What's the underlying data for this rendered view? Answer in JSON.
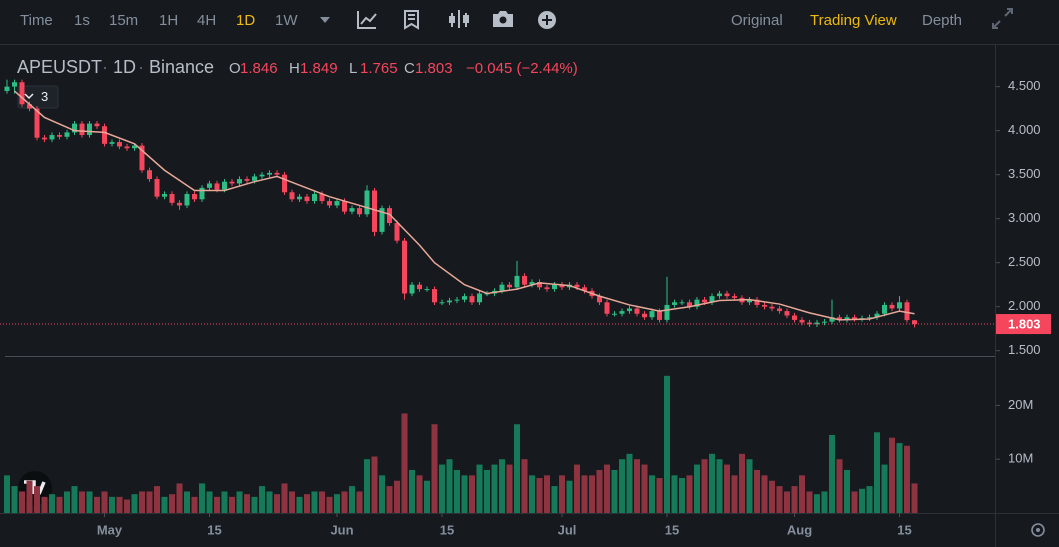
{
  "toolbar": {
    "intervals": [
      "Time",
      "1s",
      "15m",
      "1H",
      "4H",
      "1D",
      "1W"
    ],
    "views": [
      "Original",
      "Trading View",
      "Depth"
    ]
  },
  "chart_data": {
    "type": "candlestick",
    "symbol": "APEUSDT",
    "interval": "1D",
    "exchange": "Binance",
    "ohlc_labels": [
      "O",
      "H",
      "L",
      "C"
    ],
    "change": "−0.045 (−2.44%)",
    "indicator_count": "3",
    "open": [
      4.45,
      4.5,
      4.55,
      4.3,
      4.25,
      3.92,
      3.9,
      3.95,
      3.93,
      3.98,
      4.08,
      3.95,
      4.08,
      4.05,
      3.85,
      3.87,
      3.82,
      3.8,
      3.83,
      3.55,
      3.45,
      3.25,
      3.28,
      3.18,
      3.15,
      3.28,
      3.22,
      3.35,
      3.4,
      3.33,
      3.42,
      3.4,
      3.45,
      3.43,
      3.48,
      3.5,
      3.52,
      3.5,
      3.3,
      3.22,
      3.25,
      3.2,
      3.28,
      3.2,
      3.15,
      3.2,
      3.08,
      3.12,
      3.05,
      3.32,
      2.85,
      3.12,
      2.95,
      2.75,
      2.15,
      2.25,
      2.2,
      2.2,
      2.05,
      2.05,
      2.07,
      2.08,
      2.12,
      2.05,
      2.15,
      2.15,
      2.18,
      2.25,
      2.22,
      2.35,
      2.25,
      2.28,
      2.22,
      2.2,
      2.25,
      2.22,
      2.25,
      2.22,
      2.18,
      2.12,
      2.05,
      1.92,
      1.92,
      1.95,
      1.98,
      1.92,
      1.88,
      1.95,
      1.85,
      2.02,
      2.05,
      2.05,
      2.0,
      2.08,
      2.05,
      2.12,
      2.15,
      2.12,
      2.1,
      2.05,
      2.08,
      2.02,
      2.0,
      1.98,
      1.95,
      1.9,
      1.85,
      1.82,
      1.8,
      1.82,
      1.83,
      1.88,
      1.85,
      1.88,
      1.86,
      1.87,
      1.88,
      1.92,
      2.02,
      1.98,
      2.05,
      1.846
    ],
    "high": [
      4.58,
      4.58,
      4.58,
      4.33,
      4.28,
      3.95,
      3.98,
      3.98,
      4.01,
      4.11,
      4.11,
      4.11,
      4.11,
      4.08,
      3.9,
      3.9,
      3.85,
      3.86,
      3.86,
      3.58,
      3.48,
      3.31,
      3.31,
      3.21,
      3.31,
      3.31,
      3.38,
      3.43,
      3.43,
      3.45,
      3.45,
      3.48,
      3.48,
      3.51,
      3.53,
      3.55,
      3.55,
      3.53,
      3.33,
      3.28,
      3.28,
      3.31,
      3.31,
      3.23,
      3.23,
      3.23,
      3.15,
      3.15,
      3.38,
      3.35,
      3.15,
      3.15,
      2.98,
      2.78,
      2.28,
      2.28,
      2.23,
      2.23,
      2.08,
      2.1,
      2.11,
      2.15,
      2.15,
      2.18,
      2.18,
      2.21,
      2.28,
      2.28,
      2.52,
      2.38,
      2.31,
      2.31,
      2.25,
      2.28,
      2.28,
      2.28,
      2.28,
      2.25,
      2.21,
      2.15,
      2.08,
      1.95,
      1.98,
      2.01,
      2.01,
      1.95,
      1.98,
      1.98,
      2.34,
      2.08,
      2.08,
      2.08,
      2.11,
      2.11,
      2.15,
      2.18,
      2.18,
      2.15,
      2.13,
      2.11,
      2.11,
      2.05,
      2.03,
      2.01,
      1.98,
      1.93,
      1.88,
      1.85,
      1.85,
      1.86,
      2.08,
      1.91,
      1.91,
      1.91,
      1.9,
      1.91,
      1.95,
      2.05,
      2.05,
      2.12,
      2.08,
      1.849
    ],
    "low": [
      4.42,
      4.42,
      4.27,
      4.22,
      3.89,
      3.87,
      3.87,
      3.9,
      3.9,
      3.95,
      3.92,
      3.92,
      4.02,
      3.82,
      3.82,
      3.79,
      3.77,
      3.77,
      3.52,
      3.42,
      3.22,
      3.22,
      3.15,
      3.1,
      3.12,
      3.19,
      3.19,
      3.32,
      3.3,
      3.3,
      3.37,
      3.37,
      3.4,
      3.4,
      3.45,
      3.47,
      3.47,
      3.27,
      3.19,
      3.19,
      3.17,
      3.17,
      3.17,
      3.12,
      3.12,
      3.05,
      3.05,
      3.02,
      3.02,
      2.8,
      2.82,
      2.92,
      2.72,
      2.08,
      2.12,
      2.17,
      2.17,
      2.02,
      2.02,
      2.02,
      2.04,
      2.05,
      2.02,
      2.02,
      2.12,
      2.12,
      2.15,
      2.19,
      2.19,
      2.22,
      2.22,
      2.19,
      2.17,
      2.17,
      2.19,
      2.19,
      2.19,
      2.15,
      2.09,
      2.02,
      1.89,
      1.89,
      1.89,
      1.92,
      1.89,
      1.85,
      1.85,
      1.82,
      1.82,
      1.99,
      2.02,
      1.97,
      1.97,
      2.02,
      2.02,
      2.09,
      2.09,
      2.07,
      2.02,
      2.02,
      1.99,
      1.97,
      1.95,
      1.92,
      1.87,
      1.82,
      1.79,
      1.77,
      1.77,
      1.79,
      1.8,
      1.82,
      1.82,
      1.83,
      1.83,
      1.84,
      1.85,
      1.89,
      1.95,
      1.95,
      1.82,
      1.765
    ],
    "close": [
      4.5,
      4.55,
      4.3,
      4.25,
      3.92,
      3.9,
      3.95,
      3.93,
      3.98,
      4.08,
      3.95,
      4.08,
      4.05,
      3.85,
      3.87,
      3.82,
      3.8,
      3.83,
      3.55,
      3.45,
      3.25,
      3.28,
      3.18,
      3.15,
      3.28,
      3.22,
      3.35,
      3.4,
      3.33,
      3.42,
      3.4,
      3.45,
      3.43,
      3.48,
      3.5,
      3.52,
      3.5,
      3.3,
      3.22,
      3.25,
      3.2,
      3.28,
      3.2,
      3.15,
      3.2,
      3.08,
      3.12,
      3.05,
      3.32,
      2.85,
      3.12,
      2.95,
      2.75,
      2.15,
      2.25,
      2.2,
      2.2,
      2.05,
      2.05,
      2.07,
      2.08,
      2.12,
      2.05,
      2.15,
      2.15,
      2.18,
      2.25,
      2.22,
      2.35,
      2.25,
      2.28,
      2.22,
      2.2,
      2.25,
      2.22,
      2.25,
      2.22,
      2.18,
      2.12,
      2.05,
      1.92,
      1.92,
      1.95,
      1.98,
      1.92,
      1.88,
      1.95,
      1.85,
      2.02,
      2.05,
      2.05,
      2.0,
      2.08,
      2.05,
      2.12,
      2.15,
      2.12,
      2.1,
      2.05,
      2.08,
      2.02,
      2.0,
      1.98,
      1.95,
      1.9,
      1.85,
      1.82,
      1.8,
      1.82,
      1.83,
      1.88,
      1.85,
      1.88,
      1.86,
      1.87,
      1.88,
      1.92,
      2.02,
      1.98,
      2.05,
      1.848,
      1.803
    ],
    "volume": [
      7,
      5,
      4,
      6,
      5,
      3,
      3.5,
      3,
      4,
      5,
      4,
      4,
      3,
      4,
      3,
      3,
      2.5,
      3.5,
      4,
      4,
      5,
      3,
      3.5,
      5.5,
      4,
      3,
      5.5,
      4,
      3,
      4,
      3,
      4,
      3.5,
      3,
      5,
      4,
      3.5,
      5.5,
      4,
      3,
      3.5,
      4,
      4,
      3,
      3.5,
      4,
      5,
      4,
      10,
      10.5,
      7,
      5,
      6,
      18.5,
      8,
      7,
      6,
      16.5,
      9,
      10,
      8,
      7,
      7,
      9,
      8,
      9,
      10,
      9,
      16.5,
      10,
      7,
      6.5,
      7,
      5,
      7,
      6,
      9,
      7,
      7,
      8,
      9,
      8,
      10,
      11,
      10,
      9,
      7,
      6.5,
      25.5,
      7,
      6.5,
      7,
      9,
      10,
      11,
      10,
      9,
      7,
      11,
      10,
      8,
      7,
      6,
      5,
      4,
      5,
      7,
      4,
      3.5,
      4,
      14.5,
      10,
      8,
      4,
      4.5,
      5,
      15,
      9,
      14,
      13,
      12.5,
      5.5
    ],
    "ma": {
      "x": [
        1,
        5,
        9,
        13,
        17,
        21,
        25,
        29,
        33,
        36,
        39,
        43,
        47,
        51,
        55,
        57,
        61,
        64,
        68,
        71,
        75,
        79,
        83,
        87,
        91,
        95,
        99,
        103,
        107,
        111,
        115,
        119,
        121
      ],
      "values": [
        4.45,
        4.15,
        4.0,
        3.98,
        3.85,
        3.55,
        3.32,
        3.32,
        3.42,
        3.48,
        3.38,
        3.25,
        3.15,
        3.05,
        2.7,
        2.5,
        2.25,
        2.15,
        2.2,
        2.27,
        2.24,
        2.12,
        2.02,
        1.95,
        2.0,
        2.07,
        2.08,
        2.03,
        1.93,
        1.85,
        1.86,
        1.95,
        1.92
      ]
    },
    "xticks": [
      {
        "value": 13,
        "label": "May"
      },
      {
        "value": 27,
        "label": "15"
      },
      {
        "value": 44,
        "label": "Jun"
      },
      {
        "value": 58,
        "label": "15"
      },
      {
        "value": 74,
        "label": "Jul"
      },
      {
        "value": 88,
        "label": "15"
      },
      {
        "value": 105,
        "label": "Aug"
      },
      {
        "value": 119,
        "label": "15"
      }
    ],
    "ylim": [
      1.44,
      4.95
    ],
    "yticks": [
      {
        "value": 4.5,
        "label": "4.500"
      },
      {
        "value": 4.0,
        "label": "4.000"
      },
      {
        "value": 3.5,
        "label": "3.500"
      },
      {
        "value": 3.0,
        "label": "3.000"
      },
      {
        "value": 2.5,
        "label": "2.500"
      },
      {
        "value": 2.0,
        "label": "2.000"
      },
      {
        "value": 1.5,
        "label": "1.500"
      }
    ],
    "volume_ylim": [
      0,
      29
    ],
    "volume_ticks": [
      {
        "value": 20,
        "label": "20M"
      },
      {
        "value": 10,
        "label": "10M"
      }
    ],
    "colors": {
      "up": "#2ebd85",
      "down": "#f6465d",
      "volume_up": "#167a59",
      "volume_down": "#8e3441",
      "ma": "#e8a898"
    }
  }
}
